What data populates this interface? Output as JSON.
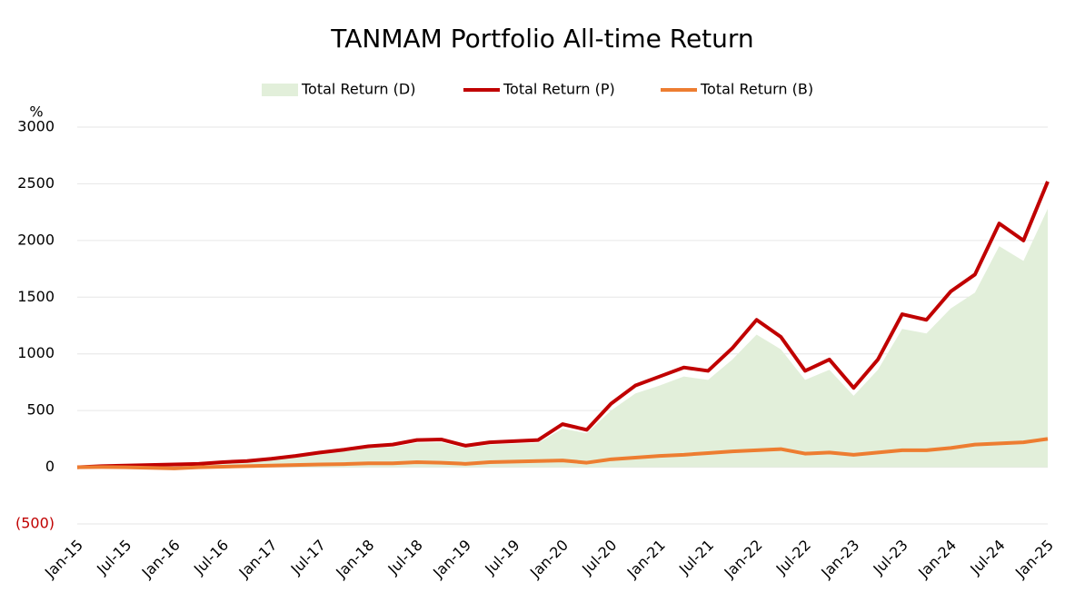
{
  "chart_data": {
    "type": "line",
    "title": "TANMAM Portfolio All-time Return",
    "y_unit": "%",
    "categories": [
      "Jan-15",
      "Apr-15",
      "Jul-15",
      "Oct-15",
      "Jan-16",
      "Apr-16",
      "Jul-16",
      "Oct-16",
      "Jan-17",
      "Apr-17",
      "Jul-17",
      "Oct-17",
      "Jan-18",
      "Apr-18",
      "Jul-18",
      "Oct-18",
      "Jan-19",
      "Apr-19",
      "Jul-19",
      "Oct-19",
      "Jan-20",
      "Apr-20",
      "Jul-20",
      "Oct-20",
      "Jan-21",
      "Apr-21",
      "Jul-21",
      "Oct-21",
      "Jan-22",
      "Apr-22",
      "Jul-22",
      "Oct-22",
      "Jan-23",
      "Apr-23",
      "Jul-23",
      "Oct-23",
      "Jan-24",
      "Apr-24",
      "Jul-24",
      "Oct-24",
      "Jan-25"
    ],
    "xticks": [
      "Jan-15",
      "Jul-15",
      "Jan-16",
      "Jul-16",
      "Jan-17",
      "Jul-17",
      "Jan-18",
      "Jul-18",
      "Jan-19",
      "Jul-19",
      "Jan-20",
      "Jul-20",
      "Jan-21",
      "Jul-21",
      "Jan-22",
      "Jul-22",
      "Jan-23",
      "Jul-23",
      "Jan-24",
      "Jul-24",
      "Jan-25"
    ],
    "series": [
      {
        "name": "Total Return (D)",
        "style": "area",
        "color": "#e2efda",
        "values": [
          0,
          9,
          14,
          18,
          22,
          27,
          40,
          50,
          68,
          90,
          118,
          140,
          168,
          180,
          215,
          220,
          170,
          200,
          208,
          216,
          340,
          300,
          500,
          650,
          720,
          800,
          770,
          950,
          1170,
          1040,
          770,
          860,
          630,
          860,
          1220,
          1180,
          1400,
          1540,
          1950,
          1820,
          2280
        ]
      },
      {
        "name": "Total Return (P)",
        "style": "line",
        "color": "#c00000",
        "values": [
          0,
          10,
          15,
          20,
          25,
          30,
          45,
          55,
          75,
          100,
          130,
          155,
          185,
          200,
          240,
          245,
          190,
          220,
          230,
          240,
          380,
          330,
          560,
          720,
          800,
          880,
          850,
          1050,
          1300,
          1150,
          850,
          950,
          700,
          950,
          1350,
          1300,
          1550,
          1700,
          2150,
          2000,
          2520
        ]
      },
      {
        "name": "Total Return (B)",
        "style": "line",
        "color": "#ed7d31",
        "values": [
          0,
          2,
          0,
          -5,
          -10,
          0,
          5,
          10,
          15,
          20,
          25,
          28,
          35,
          35,
          45,
          40,
          30,
          45,
          50,
          55,
          60,
          40,
          70,
          85,
          100,
          110,
          125,
          140,
          150,
          160,
          120,
          130,
          110,
          130,
          150,
          150,
          170,
          200,
          210,
          220,
          250
        ]
      }
    ],
    "ylim": [
      -500,
      3000
    ],
    "yticks": [
      {
        "value": -500,
        "label": "(500)"
      },
      0,
      500,
      1000,
      1500,
      2000,
      2500,
      3000
    ],
    "grid": true,
    "legend": "top"
  }
}
